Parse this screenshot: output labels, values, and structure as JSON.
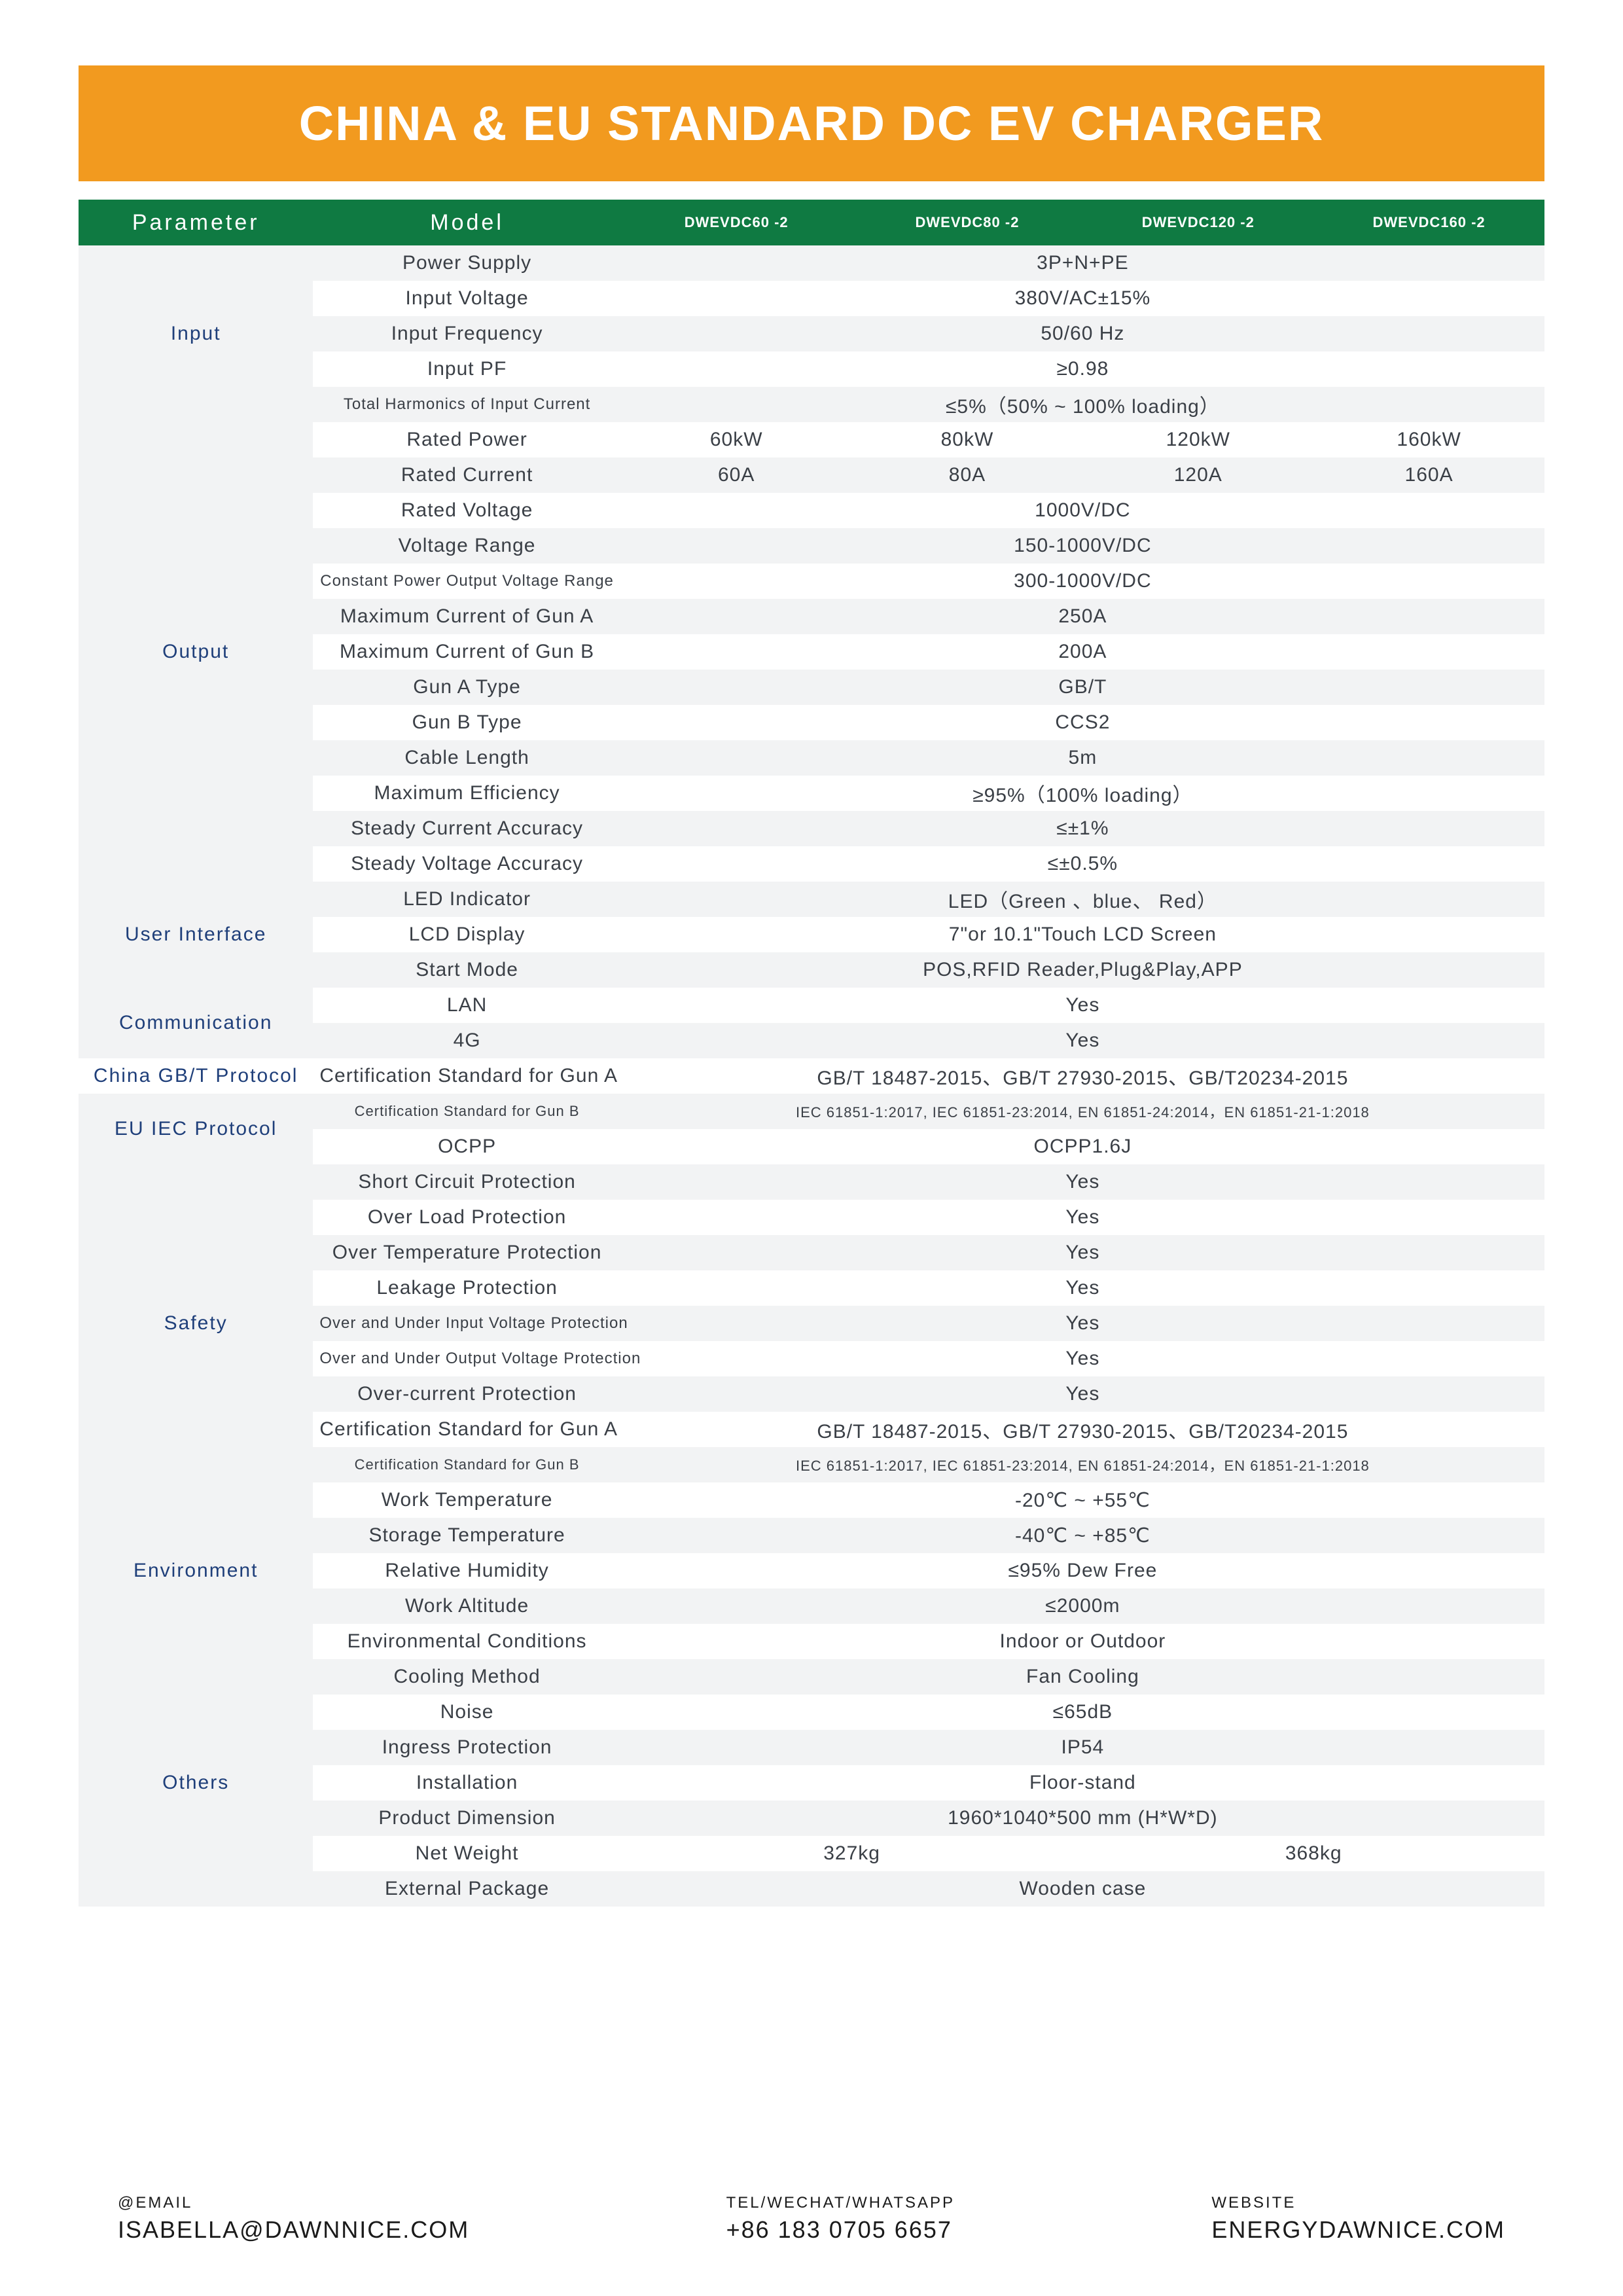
{
  "title": "CHINA & EU STANDARD DC EV CHARGER",
  "colors": {
    "banner_bg": "#f29a1f",
    "banner_text": "#ffffff",
    "header_bg": "#0f7a42",
    "header_text": "#ffffff",
    "row_alt_bg": "#f2f3f4",
    "row_bg": "#ffffff",
    "category_text": "#1f3f7a",
    "body_text": "#3a3f46"
  },
  "header": {
    "parameter": "Parameter",
    "model": "Model",
    "models": [
      "DWEVDC60 -2",
      "DWEVDC80 -2",
      "DWEVDC120 -2",
      "DWEVDC160 -2"
    ]
  },
  "sections": {
    "input": {
      "name": "Input",
      "rows": [
        {
          "label": "Power Supply",
          "value": "3P+N+PE"
        },
        {
          "label": "Input Voltage",
          "value": "380V/AC±15%"
        },
        {
          "label": "Input Frequency",
          "value": "50/60 Hz"
        },
        {
          "label": "Input PF",
          "value": "≥0.98"
        },
        {
          "label": "Total Harmonics of Input Current",
          "value": "≤5%（50% ~ 100% loading）",
          "small": true
        }
      ]
    },
    "output": {
      "name": "Output",
      "rows": [
        {
          "label": "Rated Power",
          "per_model": [
            "60kW",
            "80kW",
            "120kW",
            "160kW"
          ]
        },
        {
          "label": "Rated Current",
          "per_model": [
            "60A",
            "80A",
            "120A",
            "160A"
          ]
        },
        {
          "label": "Rated Voltage",
          "value": "1000V/DC"
        },
        {
          "label": "Voltage Range",
          "value": "150-1000V/DC"
        },
        {
          "label": "Constant Power Output Voltage Range",
          "value": "300-1000V/DC",
          "small": true
        },
        {
          "label": "Maximum Current of Gun A",
          "value": "250A"
        },
        {
          "label": "Maximum Current of Gun B",
          "value": "200A"
        },
        {
          "label": "Gun A Type",
          "value": "GB/T"
        },
        {
          "label": "Gun B Type",
          "value": "CCS2"
        },
        {
          "label": "Cable Length",
          "value": "5m"
        },
        {
          "label": "Maximum Efficiency",
          "value": "≥95%（100% loading）"
        },
        {
          "label": "Steady Current Accuracy",
          "value": "≤±1%"
        },
        {
          "label": "Steady Voltage Accuracy",
          "value": "≤±0.5%"
        }
      ]
    },
    "ui": {
      "name": "User Interface",
      "rows": [
        {
          "label": "LED Indicator",
          "value": "LED（Green 、blue、 Red）"
        },
        {
          "label": "LCD Display",
          "value": "7\"or 10.1\"Touch LCD Screen"
        },
        {
          "label": "Start Mode",
          "value": "POS,RFID Reader,Plug&Play,APP"
        }
      ]
    },
    "comm": {
      "name": "Communication",
      "rows": [
        {
          "label": "LAN",
          "value": "Yes"
        },
        {
          "label": "4G",
          "value": "Yes"
        }
      ]
    },
    "gbt": {
      "name": "China GB/T Protocol",
      "rows": [
        {
          "label": "Certification Standard for Gun A",
          "value": "GB/T 18487-2015、GB/T 27930-2015、GB/T20234-2015"
        }
      ]
    },
    "iec": {
      "name": "EU IEC Protocol",
      "rows": [
        {
          "label": "Certification Standard for Gun B",
          "value": "IEC 61851-1:2017, IEC 61851-23:2014, EN 61851-24:2014，EN 61851-21-1:2018",
          "tiny": true
        },
        {
          "label": "OCPP",
          "value": "OCPP1.6J"
        }
      ]
    },
    "safety": {
      "name": "Safety",
      "rows": [
        {
          "label": "Short Circuit Protection",
          "value": "Yes"
        },
        {
          "label": "Over Load Protection",
          "value": "Yes"
        },
        {
          "label": "Over Temperature Protection",
          "value": "Yes"
        },
        {
          "label": "Leakage Protection",
          "value": "Yes"
        },
        {
          "label": "Over and Under Input Voltage Protection",
          "value": "Yes",
          "small": true
        },
        {
          "label": "Over and Under Output Voltage Protection",
          "value": "Yes",
          "small": true
        },
        {
          "label": "Over-current Protection",
          "value": "Yes"
        },
        {
          "label": "Certification Standard for Gun A",
          "value": "GB/T 18487-2015、GB/T 27930-2015、GB/T20234-2015"
        },
        {
          "label": "Certification Standard for Gun B",
          "value": "IEC 61851-1:2017, IEC 61851-23:2014, EN 61851-24:2014，EN 61851-21-1:2018",
          "tiny": true
        }
      ]
    },
    "env": {
      "name": "Environment",
      "rows": [
        {
          "label": "Work Temperature",
          "value": "-20℃ ~ +55℃"
        },
        {
          "label": "Storage Temperature",
          "value": "-40℃ ~ +85℃"
        },
        {
          "label": "Relative Humidity",
          "value": "≤95% Dew Free"
        },
        {
          "label": "Work Altitude",
          "value": "≤2000m"
        },
        {
          "label": "Environmental Conditions",
          "value": "Indoor or Outdoor"
        }
      ]
    },
    "others": {
      "name": "Others",
      "rows": [
        {
          "label": "Cooling Method",
          "value": "Fan Cooling"
        },
        {
          "label": "Noise",
          "value": "≤65dB"
        },
        {
          "label": "Ingress Protection",
          "value": "IP54"
        },
        {
          "label": "Installation",
          "value": "Floor-stand"
        },
        {
          "label": "Product Dimension",
          "value": "1960*1040*500 mm (H*W*D)"
        },
        {
          "label": "Net Weight",
          "per_half": [
            "327kg",
            "368kg"
          ]
        },
        {
          "label": "External Package",
          "value": "Wooden case"
        }
      ]
    }
  },
  "footer": {
    "email": {
      "label": "@EMAIL",
      "value": "ISABELLA@DAWNNICE.COM"
    },
    "phone": {
      "label": "TEL/WECHAT/WHATSAPP",
      "value": "+86 183 0705 6657"
    },
    "web": {
      "label": "WEBSITE",
      "value": "ENERGYDAWNICE.COM"
    }
  }
}
